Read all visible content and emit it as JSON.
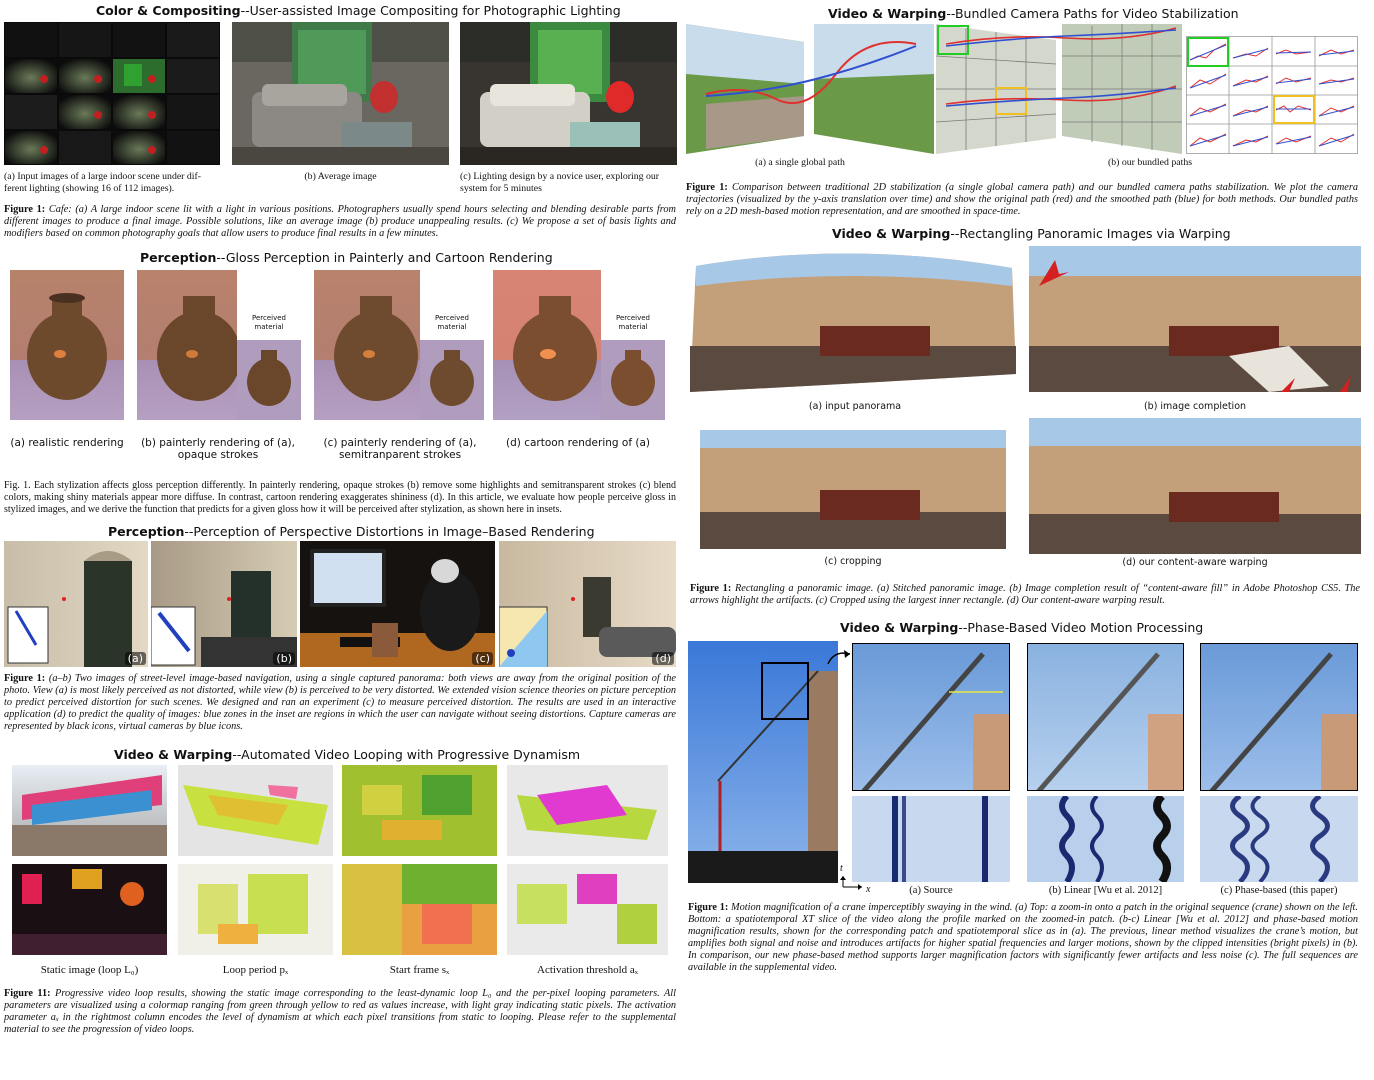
{
  "panels": {
    "color": {
      "category": "Color & Compositing",
      "subtitle": "--User-assisted Image Compositing for Photographic Lighting",
      "captions": [
        "(a) Input images of a large indoor scene under dif-ferent lighting (showing 16 of 112 images).",
        "(b) Average image",
        "(c) Lighting design by a novice user, exploring our system for 5 minutes"
      ],
      "figure_label": "Figure 1:",
      "figure_text": "Cafe: (a) A large indoor scene lit with a light in various positions. Photographers usually spend hours selecting and blending desirable parts from different images to produce a final image. Possible solutions, like an average image (b) produce unappealing results. (c) We propose a set of basis lights and modifiers based on common photography goals that allow users to produce final results in a few minutes."
    },
    "gloss": {
      "category": "Perception",
      "subtitle": "--Gloss Perception in Painterly and Cartoon Rendering",
      "inset_label": "Perceived material",
      "captions": [
        "(a) realistic rendering",
        "(b) painterly rendering of (a), opaque strokes",
        "(c) painterly rendering of (a), semitranparent strokes",
        "(d) cartoon rendering of (a)"
      ],
      "figure_label": "Fig. 1.",
      "figure_text": "Each stylization affects gloss perception differently. In painterly rendering, opaque strokes (b) remove some highlights and semitransparent strokes (c) blend colors, making shiny materials appear more diffuse. In contrast, cartoon rendering exaggerates shininess (d). In this article, we evaluate how people perceive gloss in stylized images, and we derive the function that predicts for a given gloss how it will be perceived after stylization, as shown here in insets."
    },
    "perspective": {
      "category": "Perception",
      "subtitle": "--Perception of Perspective Distortions in Image–Based Rendering",
      "tags": [
        "(a)",
        "(b)",
        "(c)",
        "(d)"
      ],
      "figure_label": "Figure 1:",
      "figure_text": "(a–b) Two images of street-level image-based navigation, using a single captured panorama: both views are away from the original position of the photo. View (a) is most likely perceived as not distorted, while view (b) is perceived to be very distorted. We extended vision science theories on picture perception to predict perceived distortion for such scenes. We designed and ran an experiment (c) to measure perceived distortion. The results are used in an interactive application (d) to predict the quality of images: blue zones in the inset are regions in which the user can navigate without seeing distortions. Capture cameras are represented by black icons, virtual cameras by blue icons."
    },
    "looping": {
      "category": "Video & Warping",
      "subtitle": "--Automated Video Looping with Progressive Dynamism",
      "captions": [
        "Static image (loop L₀)",
        "Loop period pₓ",
        "Start frame sₓ",
        "Activation threshold aₓ"
      ],
      "figure_label": "Figure 11:",
      "figure_text": "Progressive video loop results, showing the static image corresponding to the least-dynamic loop L₀ and the per-pixel looping parameters. All parameters are visualized using a colormap ranging from green through yellow to red as values increase, with light gray indicating static pixels. The activation parameter aₓ in the rightmost column encodes the level of dynamism at which each pixel transitions from static to looping. Please refer to the supplemental material to see the progression of video loops."
    },
    "bundled": {
      "category": "Video & Warping",
      "subtitle": "--Bundled Camera Paths for Video Stabilization",
      "captions": [
        "(a) a single global path",
        "(b) our bundled paths"
      ],
      "figure_label": "Figure 1:",
      "figure_text": "Comparison between traditional 2D stabilization (a single global camera path) and our bundled camera paths stabilization. We plot the camera trajectories (visualized by the y-axis translation over time) and show the original path (red) and the smoothed path (blue) for both methods. Our bundled paths rely on a 2D mesh-based motion representation, and are smoothed in space-time."
    },
    "rectangling": {
      "category": "Video & Warping",
      "subtitle": "--Rectangling Panoramic Images via Warping",
      "captions": [
        "(a) input panorama",
        "(b) image completion",
        "(c) cropping",
        "(d) our content-aware warping"
      ],
      "figure_label": "Figure 1:",
      "figure_text": "Rectangling a panoramic image. (a) Stitched panoramic image. (b) Image completion result of “content-aware fill” in Adobe Photoshop CS5. The arrows highlight the artifacts. (c) Cropped using the largest inner rectangle. (d) Our content-aware warping result."
    },
    "phase": {
      "category": "Video & Warping",
      "subtitle": "--Phase-Based Video Motion Processing",
      "axis_t": "t",
      "axis_x": "x",
      "captions": [
        "(a) Source",
        "(b) Linear  [Wu et al. 2012]",
        "(c) Phase-based (this paper)"
      ],
      "figure_label": "Figure 1:",
      "figure_text": "Motion magnification of a crane imperceptibly swaying in the wind. (a) Top: a zoom-in onto a patch in the original sequence (crane) shown on the left. Bottom: a spatiotemporal XT slice of the video along the profile marked on the zoomed-in patch. (b-c) Linear [Wu et al. 2012] and phase-based motion magnification results, shown for the corresponding patch and spatiotemporal slice as in (a). The previous, linear method visualizes the crane’s motion, but amplifies both signal and noise and introduces artifacts for higher spatial frequencies and larger motions, shown by the clipped intensities (bright pixels) in (b). In comparison, our new phase-based method supports larger magnification factors with significantly fewer artifacts and less noise (c). The full sequences are available in the supplemental video."
    }
  },
  "colors": {
    "path_red": "#e03030",
    "path_blue": "#3050d0",
    "arrow_red": "#d42020",
    "inset_green": "#22cc22",
    "inset_yellow": "#f0c020"
  }
}
